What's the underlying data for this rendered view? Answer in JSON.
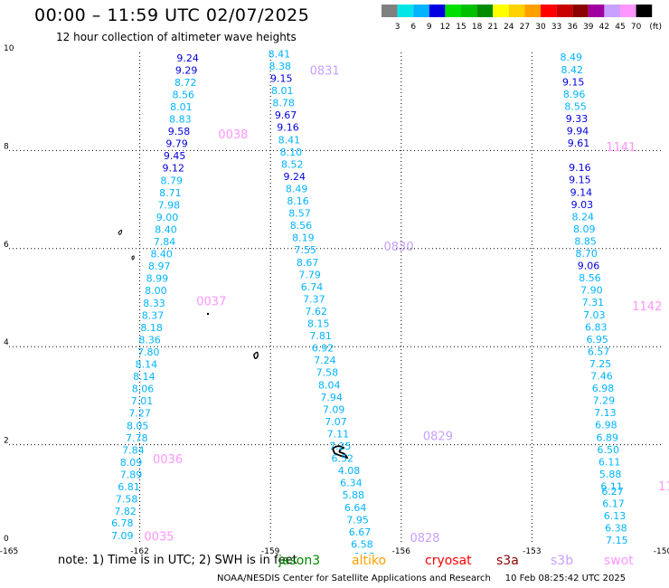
{
  "title": "00:00 – 11:59 UTC 02/07/2025",
  "subtitle": "12 hour collection of altimeter wave heights",
  "legend": {
    "colors": [
      "#808080",
      "#00e5e5",
      "#00b4ff",
      "#0000e0",
      "#00e000",
      "#00c000",
      "#008c00",
      "#ffff00",
      "#ffd200",
      "#ffa000",
      "#ff0000",
      "#c80000",
      "#8c0000",
      "#a000a0",
      "#c8a0ff",
      "#ff96ff",
      "#000000"
    ],
    "labels": [
      "3",
      "6",
      "9",
      "12",
      "15",
      "18",
      "21",
      "24",
      "27",
      "30",
      "33",
      "36",
      "39",
      "42",
      "45",
      "70",
      "(ft)"
    ]
  },
  "chart_data": {
    "type": "scatter",
    "xlabel": "",
    "ylabel": "",
    "xlim": [
      -165,
      -150
    ],
    "ylim": [
      0,
      10
    ],
    "x_ticks": [
      "-165",
      "-162",
      "-159",
      "-156",
      "-153",
      "-150"
    ],
    "y_ticks": [
      "0",
      "2",
      "4",
      "6",
      "8",
      "10"
    ],
    "grid": true,
    "color_scale": "significant wave height (ft)",
    "passes": [
      {
        "label": "0035",
        "lon": -161.9,
        "lat": 0.05,
        "color": "#ff96ff"
      },
      {
        "label": "0036",
        "lon": -161.7,
        "lat": 1.62,
        "color": "#ff96ff"
      },
      {
        "label": "0037",
        "lon": -160.7,
        "lat": 4.84,
        "color": "#ff96ff"
      },
      {
        "label": "0038",
        "lon": -160.2,
        "lat": 8.25,
        "color": "#ff96ff"
      },
      {
        "label": "0828",
        "lon": -155.8,
        "lat": 0.02,
        "color": "#c8a0ff"
      },
      {
        "label": "0829",
        "lon": -155.5,
        "lat": 2.09,
        "color": "#c8a0ff"
      },
      {
        "label": "0830",
        "lon": -156.4,
        "lat": 5.96,
        "color": "#c8a0ff"
      },
      {
        "label": "0831",
        "lon": -158.1,
        "lat": 9.55,
        "color": "#c8a0ff"
      },
      {
        "label": "1141",
        "lon": -151.3,
        "lat": 7.99,
        "color": "#ff96ff"
      },
      {
        "label": "1142",
        "lon": -150.7,
        "lat": 4.74,
        "color": "#ff96ff"
      },
      {
        "label": "11",
        "lon": -150.1,
        "lat": 1.07,
        "color": "#ff96ff"
      }
    ],
    "tracks": [
      {
        "name": "0035-0038",
        "points": [
          {
            "lon": -162.4,
            "lat": 0.07,
            "v": "7.09",
            "c": "#00b4ff"
          },
          {
            "lon": -162.4,
            "lat": 0.33,
            "v": "6.78",
            "c": "#00b4ff"
          },
          {
            "lon": -162.33,
            "lat": 0.57,
            "v": "7.82",
            "c": "#00b4ff"
          },
          {
            "lon": -162.3,
            "lat": 0.82,
            "v": "7.58",
            "c": "#00b4ff"
          },
          {
            "lon": -162.25,
            "lat": 1.07,
            "v": "6.81",
            "c": "#00b4ff"
          },
          {
            "lon": -162.2,
            "lat": 1.32,
            "v": "7.89",
            "c": "#00b4ff"
          },
          {
            "lon": -162.2,
            "lat": 1.57,
            "v": "8.09",
            "c": "#00b4ff"
          },
          {
            "lon": -162.15,
            "lat": 1.82,
            "v": "7.84",
            "c": "#00b4ff"
          },
          {
            "lon": -162.07,
            "lat": 2.07,
            "v": "7.78",
            "c": "#00b4ff"
          },
          {
            "lon": -162.05,
            "lat": 2.32,
            "v": "8.05",
            "c": "#00b4ff"
          },
          {
            "lon": -162.0,
            "lat": 2.57,
            "v": "7.27",
            "c": "#00b4ff"
          },
          {
            "lon": -161.95,
            "lat": 2.82,
            "v": "7.01",
            "c": "#00b4ff"
          },
          {
            "lon": -161.93,
            "lat": 3.07,
            "v": "8.06",
            "c": "#00b4ff"
          },
          {
            "lon": -161.9,
            "lat": 3.32,
            "v": "8.14",
            "c": "#00b4ff"
          },
          {
            "lon": -161.85,
            "lat": 3.57,
            "v": "8.14",
            "c": "#00b4ff"
          },
          {
            "lon": -161.8,
            "lat": 3.82,
            "v": "7.80",
            "c": "#00b4ff"
          },
          {
            "lon": -161.77,
            "lat": 4.07,
            "v": "8.36",
            "c": "#00b4ff"
          },
          {
            "lon": -161.73,
            "lat": 4.32,
            "v": "8.18",
            "c": "#00b4ff"
          },
          {
            "lon": -161.7,
            "lat": 4.57,
            "v": "8.37",
            "c": "#00b4ff"
          },
          {
            "lon": -161.67,
            "lat": 4.82,
            "v": "8.33",
            "c": "#00b4ff"
          },
          {
            "lon": -161.63,
            "lat": 5.07,
            "v": "8.00",
            "c": "#00b4ff"
          },
          {
            "lon": -161.6,
            "lat": 5.32,
            "v": "8.99",
            "c": "#00b4ff"
          },
          {
            "lon": -161.55,
            "lat": 5.57,
            "v": "8.97",
            "c": "#00b4ff"
          },
          {
            "lon": -161.5,
            "lat": 5.82,
            "v": "8.40",
            "c": "#00b4ff"
          },
          {
            "lon": -161.43,
            "lat": 6.07,
            "v": "7.84",
            "c": "#00b4ff"
          },
          {
            "lon": -161.4,
            "lat": 6.32,
            "v": "8.40",
            "c": "#00b4ff"
          },
          {
            "lon": -161.37,
            "lat": 6.57,
            "v": "9.00",
            "c": "#00b4ff"
          },
          {
            "lon": -161.33,
            "lat": 6.82,
            "v": "7.98",
            "c": "#00b4ff"
          },
          {
            "lon": -161.3,
            "lat": 7.07,
            "v": "8.71",
            "c": "#00b4ff"
          },
          {
            "lon": -161.27,
            "lat": 7.32,
            "v": "8.79",
            "c": "#00b4ff"
          },
          {
            "lon": -161.23,
            "lat": 7.57,
            "v": "9.12",
            "c": "#0000e0"
          },
          {
            "lon": -161.2,
            "lat": 7.82,
            "v": "9.45",
            "c": "#0000e0"
          },
          {
            "lon": -161.15,
            "lat": 8.07,
            "v": "9.79",
            "c": "#0000e0"
          },
          {
            "lon": -161.1,
            "lat": 8.32,
            "v": "9.58",
            "c": "#0000e0"
          },
          {
            "lon": -161.07,
            "lat": 8.57,
            "v": "8.83",
            "c": "#00b4ff"
          },
          {
            "lon": -161.05,
            "lat": 8.82,
            "v": "8.01",
            "c": "#00b4ff"
          },
          {
            "lon": -161.0,
            "lat": 9.07,
            "v": "8.56",
            "c": "#00b4ff"
          },
          {
            "lon": -160.95,
            "lat": 9.32,
            "v": "8.72",
            "c": "#00b4ff"
          },
          {
            "lon": -160.93,
            "lat": 9.57,
            "v": "9.29",
            "c": "#0000e0"
          },
          {
            "lon": -160.9,
            "lat": 9.82,
            "v": "9.24",
            "c": "#0000e0"
          }
        ]
      },
      {
        "name": "0828-0831",
        "points": [
          {
            "lon": -158.8,
            "lat": 9.9,
            "v": "8.41",
            "c": "#00b4ff"
          },
          {
            "lon": -158.78,
            "lat": 9.65,
            "v": "8.38",
            "c": "#00b4ff"
          },
          {
            "lon": -158.75,
            "lat": 9.4,
            "v": "9.15",
            "c": "#0000e0"
          },
          {
            "lon": -158.73,
            "lat": 9.15,
            "v": "8.01",
            "c": "#00b4ff"
          },
          {
            "lon": -158.7,
            "lat": 8.9,
            "v": "8.78",
            "c": "#00b4ff"
          },
          {
            "lon": -158.65,
            "lat": 8.65,
            "v": "9.67",
            "c": "#0000e0"
          },
          {
            "lon": -158.6,
            "lat": 8.4,
            "v": "9.16",
            "c": "#0000e0"
          },
          {
            "lon": -158.57,
            "lat": 8.15,
            "v": "8.41",
            "c": "#00b4ff"
          },
          {
            "lon": -158.53,
            "lat": 7.9,
            "v": "8.10",
            "c": "#00b4ff"
          },
          {
            "lon": -158.5,
            "lat": 7.65,
            "v": "8.52",
            "c": "#00b4ff"
          },
          {
            "lon": -158.45,
            "lat": 7.4,
            "v": "9.24",
            "c": "#0000e0"
          },
          {
            "lon": -158.4,
            "lat": 7.15,
            "v": "8.49",
            "c": "#00b4ff"
          },
          {
            "lon": -158.37,
            "lat": 6.9,
            "v": "8.16",
            "c": "#00b4ff"
          },
          {
            "lon": -158.33,
            "lat": 6.65,
            "v": "8.57",
            "c": "#00b4ff"
          },
          {
            "lon": -158.3,
            "lat": 6.4,
            "v": "8.56",
            "c": "#00b4ff"
          },
          {
            "lon": -158.25,
            "lat": 6.15,
            "v": "8.19",
            "c": "#00b4ff"
          },
          {
            "lon": -158.2,
            "lat": 5.9,
            "v": "7.55",
            "c": "#00b4ff"
          },
          {
            "lon": -158.15,
            "lat": 5.65,
            "v": "8.67",
            "c": "#00b4ff"
          },
          {
            "lon": -158.1,
            "lat": 5.4,
            "v": "7.79",
            "c": "#00b4ff"
          },
          {
            "lon": -158.05,
            "lat": 5.15,
            "v": "6.74",
            "c": "#00b4ff"
          },
          {
            "lon": -158.0,
            "lat": 4.9,
            "v": "7.37",
            "c": "#00b4ff"
          },
          {
            "lon": -157.95,
            "lat": 4.65,
            "v": "7.62",
            "c": "#00b4ff"
          },
          {
            "lon": -157.9,
            "lat": 4.4,
            "v": "8.15",
            "c": "#00b4ff"
          },
          {
            "lon": -157.85,
            "lat": 4.15,
            "v": "7.81",
            "c": "#00b4ff"
          },
          {
            "lon": -157.8,
            "lat": 3.9,
            "v": "6.92",
            "c": "#00b4ff"
          },
          {
            "lon": -157.75,
            "lat": 3.65,
            "v": "7.24",
            "c": "#00b4ff"
          },
          {
            "lon": -157.7,
            "lat": 3.4,
            "v": "7.58",
            "c": "#00b4ff"
          },
          {
            "lon": -157.65,
            "lat": 3.15,
            "v": "8.04",
            "c": "#00b4ff"
          },
          {
            "lon": -157.6,
            "lat": 2.9,
            "v": "7.94",
            "c": "#00b4ff"
          },
          {
            "lon": -157.55,
            "lat": 2.65,
            "v": "7.09",
            "c": "#00b4ff"
          },
          {
            "lon": -157.5,
            "lat": 2.4,
            "v": "7.07",
            "c": "#00b4ff"
          },
          {
            "lon": -157.45,
            "lat": 2.15,
            "v": "7.11",
            "c": "#00b4ff"
          },
          {
            "lon": -157.4,
            "lat": 1.9,
            "v": "7.25",
            "c": "#00b4ff"
          },
          {
            "lon": -157.35,
            "lat": 1.65,
            "v": "6.52",
            "c": "#00b4ff"
          },
          {
            "lon": -157.2,
            "lat": 1.4,
            "v": "4.08",
            "c": "#00b4ff"
          },
          {
            "lon": -157.15,
            "lat": 1.15,
            "v": "6.34",
            "c": "#00b4ff"
          },
          {
            "lon": -157.1,
            "lat": 0.9,
            "v": "5.88",
            "c": "#00b4ff"
          },
          {
            "lon": -157.05,
            "lat": 0.65,
            "v": "6.64",
            "c": "#00b4ff"
          },
          {
            "lon": -157.0,
            "lat": 0.4,
            "v": "7.95",
            "c": "#00b4ff"
          },
          {
            "lon": -156.95,
            "lat": 0.15,
            "v": "6.67",
            "c": "#00b4ff"
          },
          {
            "lon": -156.9,
            "lat": -0.1,
            "v": "6.58",
            "c": "#00b4ff"
          },
          {
            "lon": -156.85,
            "lat": -0.35,
            "v": "6.15",
            "c": "#00b4ff"
          }
        ]
      },
      {
        "name": "1141-1142",
        "points": [
          {
            "lon": -152.1,
            "lat": 9.83,
            "v": "8.49",
            "c": "#00b4ff"
          },
          {
            "lon": -152.08,
            "lat": 9.58,
            "v": "8.42",
            "c": "#00b4ff"
          },
          {
            "lon": -152.05,
            "lat": 9.33,
            "v": "9.15",
            "c": "#0000e0"
          },
          {
            "lon": -152.03,
            "lat": 9.08,
            "v": "8.96",
            "c": "#00b4ff"
          },
          {
            "lon": -152.0,
            "lat": 8.83,
            "v": "8.55",
            "c": "#00b4ff"
          },
          {
            "lon": -151.97,
            "lat": 8.58,
            "v": "9.33",
            "c": "#0000e0"
          },
          {
            "lon": -151.95,
            "lat": 8.33,
            "v": "9.94",
            "c": "#0000e0"
          },
          {
            "lon": -151.93,
            "lat": 8.08,
            "v": "9.61",
            "c": "#0000e0"
          },
          {
            "lon": -151.9,
            "lat": 7.58,
            "v": "9.16",
            "c": "#0000e0"
          },
          {
            "lon": -151.9,
            "lat": 7.33,
            "v": "9.15",
            "c": "#0000e0"
          },
          {
            "lon": -151.87,
            "lat": 7.08,
            "v": "9.14",
            "c": "#0000e0"
          },
          {
            "lon": -151.85,
            "lat": 6.83,
            "v": "9.03",
            "c": "#0000e0"
          },
          {
            "lon": -151.83,
            "lat": 6.58,
            "v": "8.24",
            "c": "#00b4ff"
          },
          {
            "lon": -151.8,
            "lat": 6.33,
            "v": "8.09",
            "c": "#00b4ff"
          },
          {
            "lon": -151.77,
            "lat": 6.08,
            "v": "8.85",
            "c": "#00b4ff"
          },
          {
            "lon": -151.75,
            "lat": 5.83,
            "v": "8.70",
            "c": "#00b4ff"
          },
          {
            "lon": -151.7,
            "lat": 5.58,
            "v": "9.06",
            "c": "#0000e0"
          },
          {
            "lon": -151.67,
            "lat": 5.33,
            "v": "8.56",
            "c": "#00b4ff"
          },
          {
            "lon": -151.63,
            "lat": 5.08,
            "v": "7.90",
            "c": "#00b4ff"
          },
          {
            "lon": -151.6,
            "lat": 4.83,
            "v": "7.31",
            "c": "#00b4ff"
          },
          {
            "lon": -151.57,
            "lat": 4.58,
            "v": "7.03",
            "c": "#00b4ff"
          },
          {
            "lon": -151.53,
            "lat": 4.33,
            "v": "6.83",
            "c": "#00b4ff"
          },
          {
            "lon": -151.5,
            "lat": 4.08,
            "v": "6.95",
            "c": "#00b4ff"
          },
          {
            "lon": -151.47,
            "lat": 3.83,
            "v": "6.57",
            "c": "#00b4ff"
          },
          {
            "lon": -151.43,
            "lat": 3.58,
            "v": "7.25",
            "c": "#00b4ff"
          },
          {
            "lon": -151.4,
            "lat": 3.33,
            "v": "7.46",
            "c": "#00b4ff"
          },
          {
            "lon": -151.37,
            "lat": 3.08,
            "v": "6.98",
            "c": "#00b4ff"
          },
          {
            "lon": -151.35,
            "lat": 2.83,
            "v": "7.29",
            "c": "#00b4ff"
          },
          {
            "lon": -151.32,
            "lat": 2.58,
            "v": "7.13",
            "c": "#00b4ff"
          },
          {
            "lon": -151.3,
            "lat": 2.33,
            "v": "6.98",
            "c": "#00b4ff"
          },
          {
            "lon": -151.27,
            "lat": 2.08,
            "v": "6.89",
            "c": "#00b4ff"
          },
          {
            "lon": -151.25,
            "lat": 1.83,
            "v": "6.50",
            "c": "#00b4ff"
          },
          {
            "lon": -151.22,
            "lat": 1.58,
            "v": "6.11",
            "c": "#00b4ff"
          },
          {
            "lon": -151.2,
            "lat": 1.33,
            "v": "5.88",
            "c": "#00b4ff"
          },
          {
            "lon": -151.17,
            "lat": 1.08,
            "v": "6.11",
            "c": "#00b4ff"
          },
          {
            "lon": -151.15,
            "lat": 0.98,
            "v": "6.27",
            "c": "#00b4ff"
          },
          {
            "lon": -151.13,
            "lat": 0.73,
            "v": "6.17",
            "c": "#00b4ff"
          },
          {
            "lon": -151.1,
            "lat": 0.48,
            "v": "6.13",
            "c": "#00b4ff"
          },
          {
            "lon": -151.07,
            "lat": 0.23,
            "v": "6.38",
            "c": "#00b4ff"
          },
          {
            "lon": -151.05,
            "lat": -0.02,
            "v": "7.15",
            "c": "#00b4ff"
          }
        ]
      }
    ]
  },
  "footer": {
    "note": "note:  1) Time is in UTC;  2) SWH is in feet",
    "satellites": [
      {
        "name": "jason3",
        "color": "#008c00"
      },
      {
        "name": "altiko",
        "color": "#ffa000"
      },
      {
        "name": "cryosat",
        "color": "#ff0000"
      },
      {
        "name": "s3a",
        "color": "#8c0000"
      },
      {
        "name": "s3b",
        "color": "#c8a0ff"
      },
      {
        "name": "swot",
        "color": "#ff96ff"
      }
    ],
    "credit": "NOAA/NESDIS Center for Satellite Applications and Research",
    "timestamp": "10 Feb 08:25:42 UTC 2025"
  }
}
